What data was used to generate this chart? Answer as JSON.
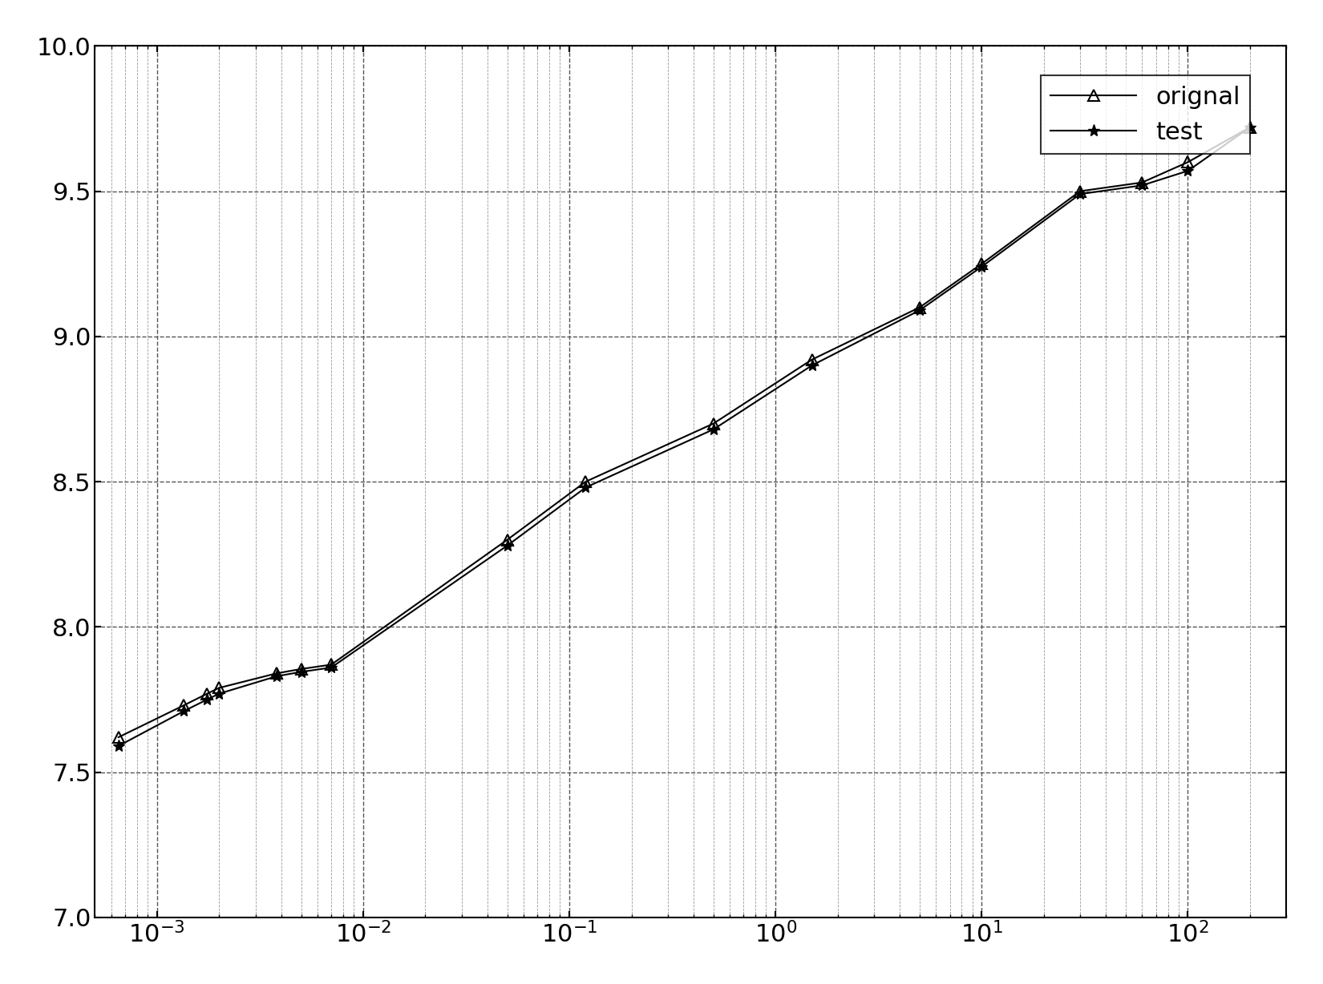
{
  "title": "",
  "xlim": [
    0.0005,
    300.0
  ],
  "ylim": [
    7,
    10
  ],
  "yticks": [
    7,
    7.5,
    8,
    8.5,
    9,
    9.5,
    10
  ],
  "background_color": "#ffffff",
  "original_x": [
    0.00065,
    0.00135,
    0.00175,
    0.002,
    0.0038,
    0.005,
    0.007,
    0.05,
    0.12,
    0.5,
    1.5,
    5.0,
    10.0,
    30.0,
    60.0,
    100.0,
    200.0
  ],
  "original_y": [
    7.62,
    7.73,
    7.77,
    7.79,
    7.84,
    7.855,
    7.87,
    8.3,
    8.5,
    8.7,
    8.92,
    9.1,
    9.25,
    9.5,
    9.53,
    9.6,
    9.72
  ],
  "test_x": [
    0.00065,
    0.00135,
    0.00175,
    0.002,
    0.0038,
    0.005,
    0.007,
    0.05,
    0.12,
    0.5,
    1.5,
    5.0,
    10.0,
    30.0,
    60.0,
    100.0,
    200.0
  ],
  "test_y": [
    7.59,
    7.71,
    7.75,
    7.77,
    7.83,
    7.845,
    7.86,
    8.28,
    8.48,
    8.68,
    8.9,
    9.09,
    9.24,
    9.49,
    9.52,
    9.57,
    9.72
  ],
  "line_color": "#000000",
  "legend_labels": [
    "orignal",
    "test"
  ],
  "marker_original": "^",
  "marker_test": "*",
  "figsize": [
    16.5,
    12.28
  ],
  "dpi": 100
}
